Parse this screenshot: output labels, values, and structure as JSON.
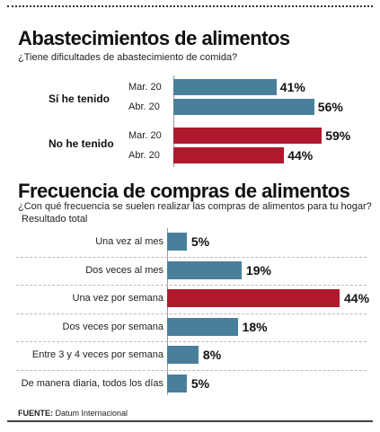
{
  "chart_data": [
    {
      "type": "bar",
      "title": "Abastecimientos de alimentos",
      "subtitle": "¿Tiene dificultades de abastecimiento de comida?",
      "groups": [
        "Sí he tenido",
        "No he tenido"
      ],
      "categories": [
        "Mar. 20",
        "Abr. 20"
      ],
      "series": [
        {
          "group": "Sí he tenido",
          "values": [
            41,
            56
          ],
          "color": "#4a7f9c"
        },
        {
          "group": "No he tenido",
          "values": [
            59,
            44
          ],
          "color": "#b0182e"
        }
      ],
      "value_labels": [
        [
          "41%",
          "56%"
        ],
        [
          "59%",
          "44%"
        ]
      ],
      "xlim": [
        0,
        60
      ]
    },
    {
      "type": "bar",
      "title": "Frecuencia de compras de alimentos",
      "subtitle": "¿Con qué frecuencia se suelen realizar las compras de alimentos para tu hogar?",
      "note": "Resultado total",
      "categories": [
        "Una vez al mes",
        "Dos veces al mes",
        "Una vez por semana",
        "Dos veces por semana",
        "Entre 3 y 4 veces por semana",
        "De manera diaria, todos los días"
      ],
      "values": [
        5,
        19,
        44,
        18,
        8,
        5
      ],
      "value_labels": [
        "5%",
        "19%",
        "44%",
        "18%",
        "8%",
        "5%"
      ],
      "colors": [
        "#4a7f9c",
        "#4a7f9c",
        "#b0182e",
        "#4a7f9c",
        "#4a7f9c",
        "#4a7f9c"
      ],
      "xlim": [
        0,
        44
      ]
    }
  ],
  "source": {
    "label": "FUENTE:",
    "text": "Datum Internacional"
  }
}
